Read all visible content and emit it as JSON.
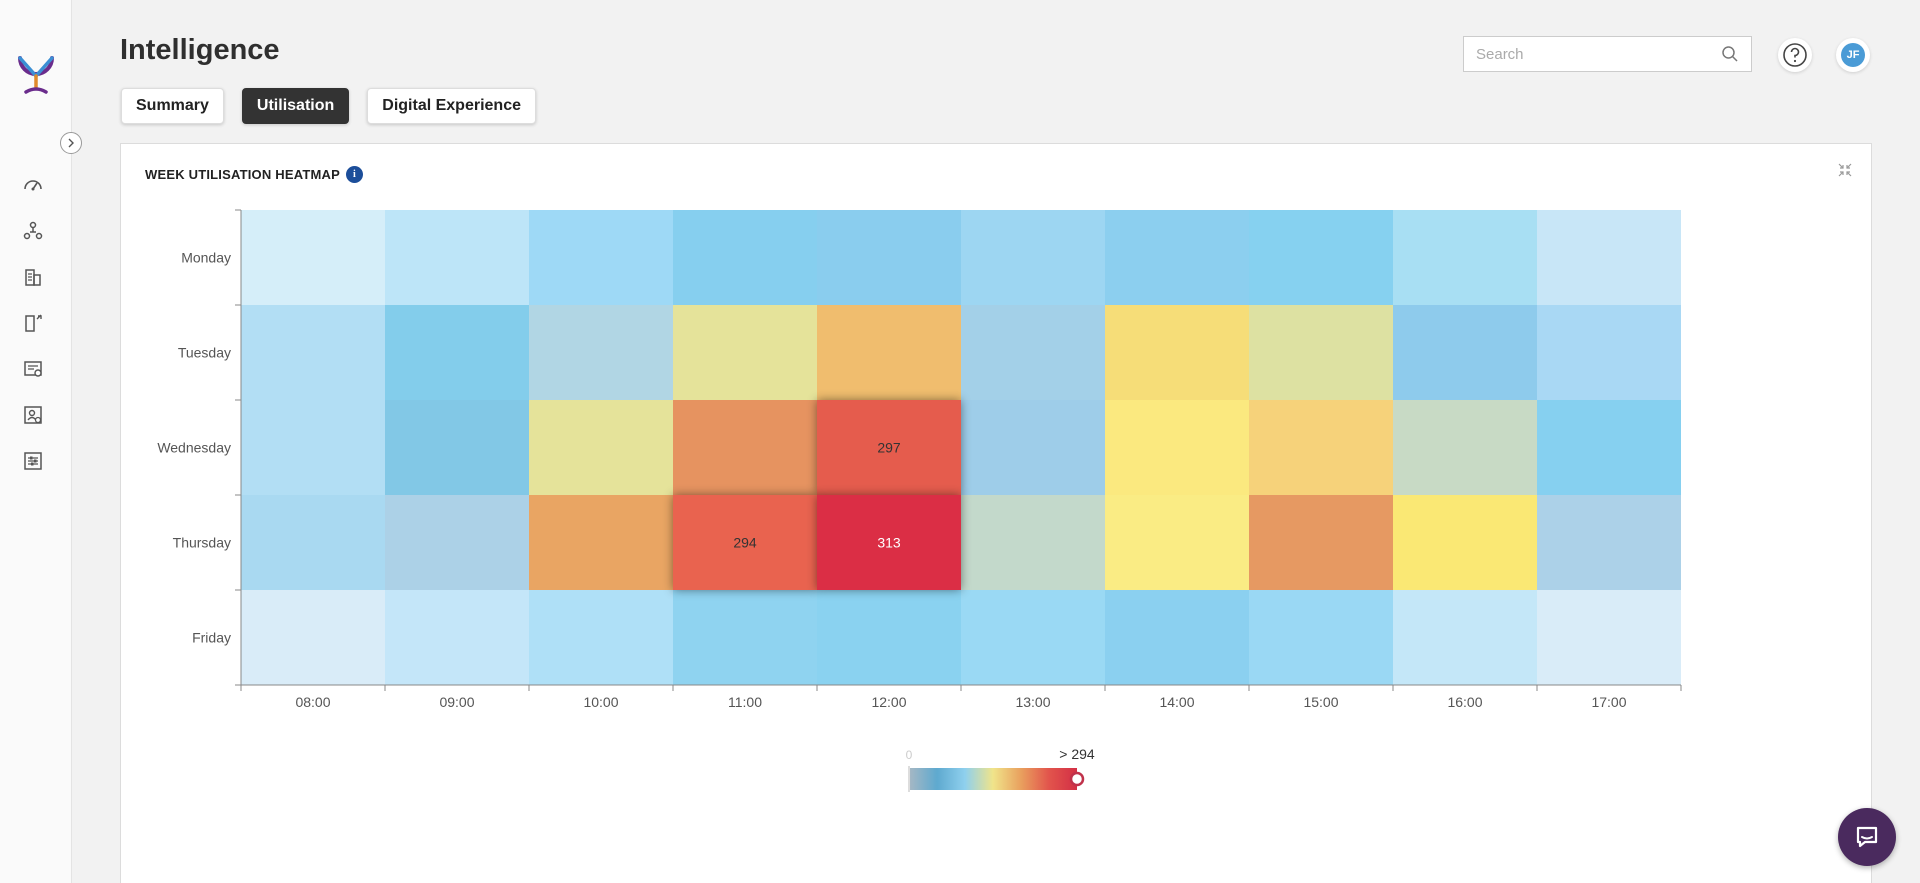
{
  "app": {
    "title": "Intelligence"
  },
  "tabs": [
    {
      "label": "Summary",
      "active": false
    },
    {
      "label": "Utilisation",
      "active": true
    },
    {
      "label": "Digital Experience",
      "active": false
    }
  ],
  "search": {
    "placeholder": "Search",
    "value": ""
  },
  "help": {
    "icon": "question-icon"
  },
  "user": {
    "initials": "JF"
  },
  "sidebar": {
    "items": [
      {
        "icon": "dashboard-gauge-icon"
      },
      {
        "icon": "people-network-icon"
      },
      {
        "icon": "buildings-icon"
      },
      {
        "icon": "door-sensor-icon"
      },
      {
        "icon": "room-booking-icon"
      },
      {
        "icon": "desk-user-icon"
      },
      {
        "icon": "settings-sliders-icon"
      }
    ]
  },
  "widget": {
    "title": "WEEK UTILISATION HEATMAP",
    "info_icon": "i"
  },
  "chart_data": {
    "type": "heatmap",
    "title": "",
    "x": [
      "08:00",
      "09:00",
      "10:00",
      "11:00",
      "12:00",
      "13:00",
      "14:00",
      "15:00",
      "16:00",
      "17:00"
    ],
    "y": [
      "Monday",
      "Tuesday",
      "Wednesday",
      "Thursday",
      "Friday"
    ],
    "colors": {
      "Monday": [
        "#d5eef9",
        "#bde5f8",
        "#9ed9f6",
        "#86cfef",
        "#8acdee",
        "#9dd6f2",
        "#8ccfef",
        "#86d1f0",
        "#a8dff3",
        "#c8e6f7"
      ],
      "Tuesday": [
        "#b2def4",
        "#83cdeb",
        "#b1d6e4",
        "#e5e39a",
        "#f0bd6e",
        "#a3d0e8",
        "#f6dd78",
        "#dde1a2",
        "#8ecbec",
        "#a9d8f4"
      ],
      "Wednesday": [
        "#b2def4",
        "#82c8e6",
        "#e5e39a",
        "#e69360",
        "#e55b4d",
        "#9ecde9",
        "#fbe97f",
        "#f6d27a",
        "#c8dac5",
        "#86d0f0"
      ],
      "Thursday": [
        "#a9d9f1",
        "#acd1e7",
        "#e9a563",
        "#e9644f",
        "#db2f44",
        "#c3d9cb",
        "#faec84",
        "#e69962",
        "#fae874",
        "#acd1e8"
      ],
      "Friday": [
        "#d9ecf8",
        "#c4e6f9",
        "#afe0f7",
        "#8fd3f0",
        "#8ad2f0",
        "#9ad9f4",
        "#8bd0f0",
        "#9ad8f4",
        "#c4e7f8",
        "#d9ecf8"
      ]
    },
    "labels": [
      {
        "row": "Wednesday",
        "col": "12:00",
        "value": 297
      },
      {
        "row": "Thursday",
        "col": "11:00",
        "value": 294
      },
      {
        "row": "Thursday",
        "col": "12:00",
        "value": 313
      }
    ],
    "legend": {
      "min_label": "0",
      "max_label": "> 294",
      "gradient": [
        "#a7b8c4",
        "#5ea9cf",
        "#8fd0ee",
        "#f0e48a",
        "#e9a05e",
        "#e2544c",
        "#d32f45"
      ]
    },
    "grid": false
  }
}
